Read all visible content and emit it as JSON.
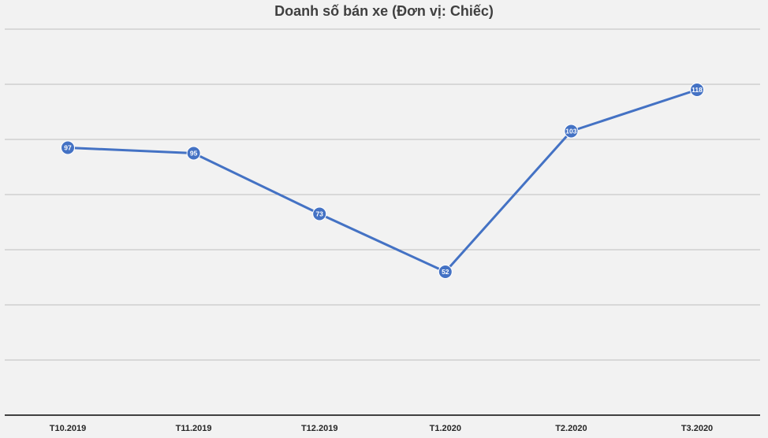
{
  "chart_data": {
    "type": "line",
    "title": "Doanh số bán xe (Đơn vị: Chiếc)",
    "xlabel": "",
    "ylabel": "",
    "categories": [
      "T10.2019",
      "T11.2019",
      "T12.2019",
      "T1.2020",
      "T2.2020",
      "T3.2020"
    ],
    "series": [
      {
        "values": [
          97,
          95,
          73,
          52,
          103,
          118
        ]
      }
    ],
    "ylim": [
      0,
      140
    ],
    "gridlines": [
      20,
      40,
      60,
      80,
      100,
      120,
      140
    ],
    "grid": true,
    "legend": false,
    "colors": {
      "line": "#4472c4",
      "grid": "#bfbfbf",
      "axis": "#404040",
      "background": "#f2f2f2"
    }
  }
}
